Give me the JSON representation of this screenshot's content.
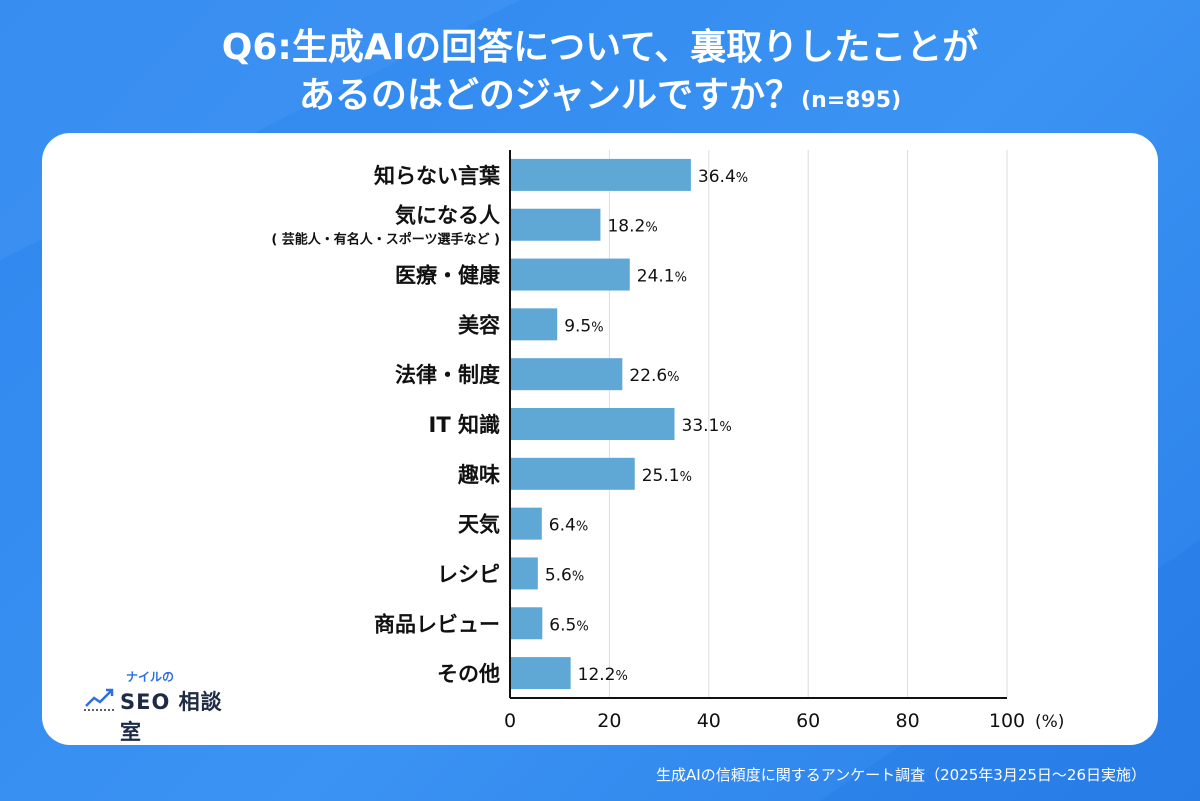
{
  "title": {
    "line1": "Q6:生成AIの回答について、裏取りしたことが",
    "line2": "あるのはどのジャンルですか？",
    "n": "(n=895)"
  },
  "footer": "生成AIの信頼度に関するアンケート調査（2025年3月25日〜26日実施）",
  "logo": {
    "top": "ナイルの",
    "main": "SEO 相談室"
  },
  "colors": {
    "bar": "#5fa8d6",
    "background": "#3a91f2",
    "card": "#ffffff",
    "axis": "#111111",
    "grid": "#dddddd"
  },
  "chart_data": {
    "type": "bar",
    "orientation": "horizontal",
    "categories": [
      [
        "知らない言葉"
      ],
      [
        "気になる人",
        "( 芸能人・有名人・スポーツ選手など )"
      ],
      [
        "医療・健康"
      ],
      [
        "美容"
      ],
      [
        "法律・制度"
      ],
      [
        "IT 知識"
      ],
      [
        "趣味"
      ],
      [
        "天気"
      ],
      [
        "レシピ"
      ],
      [
        "商品レビュー"
      ],
      [
        "その他"
      ]
    ],
    "values": [
      36.4,
      18.2,
      24.1,
      9.5,
      22.6,
      33.1,
      25.1,
      6.4,
      5.6,
      6.5,
      12.2
    ],
    "value_labels": [
      "36.4",
      "18.2",
      "24.1",
      "9.5",
      "22.6",
      "33.1",
      "25.1",
      "6.4",
      "5.6",
      "6.5",
      "12.2"
    ],
    "value_suffix": "%",
    "xlim": [
      0,
      100
    ],
    "xticks": [
      0,
      20,
      40,
      60,
      80,
      100
    ],
    "xunit": "(%)",
    "grid": true
  }
}
